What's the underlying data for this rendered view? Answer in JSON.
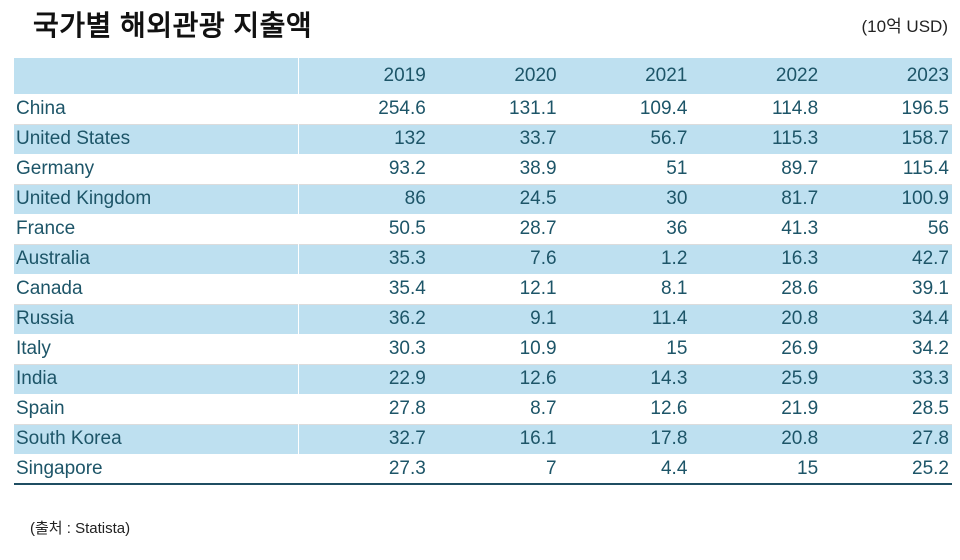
{
  "title": "국가별 해외관광 지출액",
  "unit_label": "(10억 USD)",
  "source_label": "(출처 : Statista)",
  "colors": {
    "stripe_blue": "#bee0f0",
    "table_text": "#1d5568",
    "border_dark": "#1f4e62",
    "title_text": "#111111"
  },
  "chart_data": {
    "type": "table",
    "title": "국가별 해외관광 지출액",
    "unit": "10억 USD",
    "source": "Statista",
    "columns": [
      "",
      "2019",
      "2020",
      "2021",
      "2022",
      "2023"
    ],
    "rows": [
      {
        "country": "China",
        "values": [
          254.6,
          131.1,
          109.4,
          114.8,
          196.5
        ]
      },
      {
        "country": "United States",
        "values": [
          132,
          33.7,
          56.7,
          115.3,
          158.7
        ]
      },
      {
        "country": "Germany",
        "values": [
          93.2,
          38.9,
          51,
          89.7,
          115.4
        ]
      },
      {
        "country": "United Kingdom",
        "values": [
          86,
          24.5,
          30,
          81.7,
          100.9
        ]
      },
      {
        "country": "France",
        "values": [
          50.5,
          28.7,
          36,
          41.3,
          56
        ]
      },
      {
        "country": "Australia",
        "values": [
          35.3,
          7.6,
          1.2,
          16.3,
          42.7
        ]
      },
      {
        "country": "Canada",
        "values": [
          35.4,
          12.1,
          8.1,
          28.6,
          39.1
        ]
      },
      {
        "country": "Russia",
        "values": [
          36.2,
          9.1,
          11.4,
          20.8,
          34.4
        ]
      },
      {
        "country": "Italy",
        "values": [
          30.3,
          10.9,
          15,
          26.9,
          34.2
        ]
      },
      {
        "country": "India",
        "values": [
          22.9,
          12.6,
          14.3,
          25.9,
          33.3
        ]
      },
      {
        "country": "Spain",
        "values": [
          27.8,
          8.7,
          12.6,
          21.9,
          28.5
        ]
      },
      {
        "country": "South Korea",
        "values": [
          32.7,
          16.1,
          17.8,
          20.8,
          27.8
        ]
      },
      {
        "country": "Singapore",
        "values": [
          27.3,
          7,
          4.4,
          15,
          25.2
        ]
      }
    ]
  }
}
